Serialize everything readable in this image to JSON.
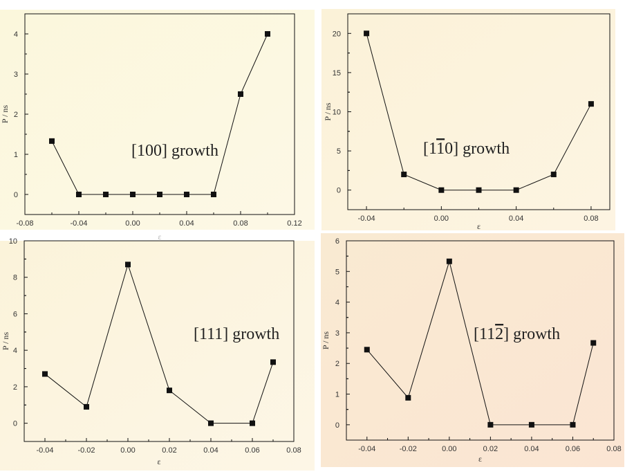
{
  "chart_data": [
    {
      "type": "line",
      "annotation": [
        {
          "t": "[100]"
        },
        {
          "t": " growth"
        }
      ],
      "xlabel": "ε",
      "ylabel": "P / ns",
      "x": [
        -0.06,
        -0.04,
        -0.02,
        0.0,
        0.02,
        0.04,
        0.06,
        0.08,
        0.1
      ],
      "values": [
        1.33,
        0,
        0,
        0,
        0,
        0,
        0,
        2.5,
        4.0
      ],
      "xlim": [
        -0.08,
        0.12
      ],
      "ylim": [
        -0.5,
        4.5
      ],
      "xticks": [
        "-0.08",
        "-0.04",
        "0.00",
        "0.04",
        "0.08",
        "0.12"
      ],
      "yticks": [
        "0",
        "1",
        "2",
        "3",
        "4"
      ],
      "grid": false,
      "background": [
        "#fbf7dc",
        "#fdf8e6"
      ]
    },
    {
      "type": "line",
      "annotation": [
        {
          "t": "[1"
        },
        {
          "t": "1",
          "bar": true
        },
        {
          "t": "0]"
        },
        {
          "t": " growth"
        }
      ],
      "xlabel": "ε",
      "ylabel": "P / ns",
      "x": [
        -0.04,
        -0.02,
        0.0,
        0.02,
        0.04,
        0.06,
        0.08
      ],
      "values": [
        20,
        2,
        0,
        0,
        0,
        2,
        11
      ],
      "xlim": [
        -0.05,
        0.09
      ],
      "ylim": [
        -2.5,
        22.5
      ],
      "xticks": [
        "-0.04",
        "0.00",
        "0.04",
        "0.08"
      ],
      "yticks": [
        "0",
        "5",
        "10",
        "15",
        "20"
      ],
      "grid": false,
      "background": [
        "#fbf2d8",
        "#fdf4e2"
      ]
    },
    {
      "type": "line",
      "annotation": [
        {
          "t": "[111]"
        },
        {
          "t": " growth"
        }
      ],
      "xlabel": "ε",
      "ylabel": "P / ns",
      "x": [
        -0.04,
        -0.02,
        0.0,
        0.02,
        0.04,
        0.06,
        0.07
      ],
      "values": [
        2.7,
        0.9,
        8.7,
        1.8,
        0,
        0,
        3.35
      ],
      "xlim": [
        -0.05,
        0.08
      ],
      "ylim": [
        -1,
        10
      ],
      "xticks": [
        "-0.04",
        "-0.02",
        "0.00",
        "0.02",
        "0.04",
        "0.06",
        "0.08"
      ],
      "yticks": [
        "0",
        "2",
        "4",
        "6",
        "8",
        "10"
      ],
      "grid": false,
      "background": [
        "#fbf3da",
        "#fdf6e6"
      ]
    },
    {
      "type": "line",
      "annotation": [
        {
          "t": "[11"
        },
        {
          "t": "2",
          "bar": true
        },
        {
          "t": "]"
        },
        {
          "t": " growth"
        }
      ],
      "xlabel": "ε",
      "ylabel": "P / ns",
      "x": [
        -0.04,
        -0.02,
        0.0,
        0.02,
        0.04,
        0.06,
        0.07
      ],
      "values": [
        2.45,
        0.88,
        5.33,
        0,
        0,
        0,
        2.67
      ],
      "xlim": [
        -0.05,
        0.08
      ],
      "ylim": [
        -0.5,
        6
      ],
      "xticks": [
        "-0.04",
        "-0.02",
        "0.00",
        "0.02",
        "0.04",
        "0.06",
        "0.08"
      ],
      "yticks": [
        "0",
        "1",
        "2",
        "3",
        "4",
        "5",
        "6"
      ],
      "grid": false,
      "background": [
        "#f9ead2",
        "#fbe5d3"
      ]
    }
  ]
}
